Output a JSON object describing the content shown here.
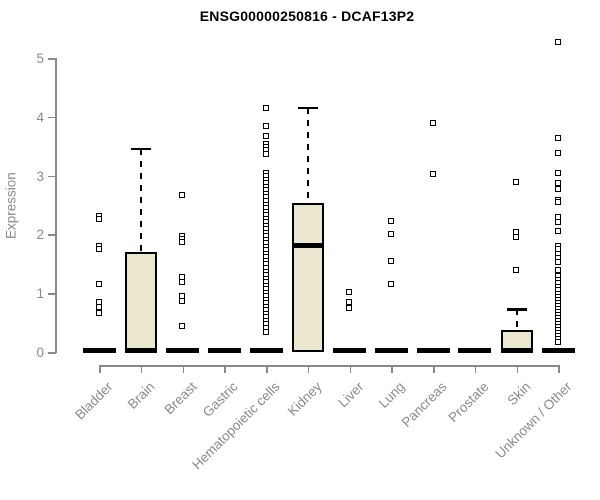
{
  "chart_data": {
    "type": "boxplot",
    "title": "ENSG00000250816 - DCAF13P2",
    "ylabel": "Expression",
    "ylim": [
      0,
      5.3
    ],
    "yticks": [
      "0",
      "1",
      "2",
      "3",
      "4",
      "5"
    ],
    "ytick_values": [
      0,
      1,
      2,
      3,
      4,
      5
    ],
    "grid": false,
    "legend": "none",
    "colors": {
      "box_fill": "#ebe7cf",
      "box_stroke": "#000000",
      "axis": "#888888",
      "tick_label": "#8a8a8a",
      "title": "#000000"
    },
    "categories": [
      "Bladder",
      "Brain",
      "Breast",
      "Gastric",
      "Hematopoietic cells",
      "Kidney",
      "Liver",
      "Lung",
      "Pancreas",
      "Prostate",
      "Skin",
      "Unknown / Other"
    ],
    "boxes": [
      {
        "category": "Bladder",
        "q1": 0,
        "median": 0.02,
        "q3": 0,
        "whisker_low": 0,
        "whisker_high": 0,
        "outliers": [
          2.31,
          2.26,
          1.8,
          1.74,
          1.14,
          0.85,
          0.75,
          0.66
        ]
      },
      {
        "category": "Brain",
        "q1": 0,
        "median": 0.02,
        "q3": 1.7,
        "whisker_low": 0,
        "whisker_high": 3.46,
        "outliers": []
      },
      {
        "category": "Breast",
        "q1": 0,
        "median": 0.02,
        "q3": 0,
        "whisker_low": 0,
        "whisker_high": 0,
        "outliers": [
          2.67,
          1.97,
          1.92,
          1.86,
          1.26,
          1.19,
          0.94,
          0.86,
          0.44
        ]
      },
      {
        "category": "Gastric",
        "q1": 0,
        "median": 0.02,
        "q3": 0,
        "whisker_low": 0,
        "whisker_high": 0,
        "outliers": []
      },
      {
        "category": "Hematopoietic cells",
        "q1": 0,
        "median": 0.02,
        "q3": 0,
        "whisker_low": 0,
        "whisker_high": 0,
        "outliers": [
          4.14,
          3.83,
          3.66,
          3.53,
          3.48,
          3.42,
          3.36,
          3.04,
          2.98,
          2.92,
          2.86,
          2.8,
          2.74,
          2.68,
          2.62,
          2.56,
          2.5,
          2.44,
          2.38,
          2.32,
          2.26,
          2.2,
          2.14,
          2.08,
          2.02,
          1.96,
          1.9,
          1.84,
          1.78,
          1.72,
          1.66,
          1.6,
          1.54,
          1.48,
          1.42,
          1.36,
          1.3,
          1.24,
          1.18,
          1.12,
          1.06,
          1.0,
          0.94,
          0.88,
          0.82,
          0.76,
          0.7,
          0.64,
          0.58,
          0.52,
          0.46,
          0.4,
          0.34
        ]
      },
      {
        "category": "Kidney",
        "q1": 0,
        "median": 1.81,
        "q3": 2.53,
        "whisker_low": 0,
        "whisker_high": 4.15,
        "outliers": []
      },
      {
        "category": "Liver",
        "q1": 0,
        "median": 0.02,
        "q3": 0,
        "whisker_low": 0,
        "whisker_high": 0,
        "outliers": [
          1.02,
          0.85,
          0.74
        ]
      },
      {
        "category": "Lung",
        "q1": 0,
        "median": 0.02,
        "q3": 0,
        "whisker_low": 0,
        "whisker_high": 0,
        "outliers": [
          2.22,
          1.99,
          1.54,
          1.14
        ]
      },
      {
        "category": "Pancreas",
        "q1": 0,
        "median": 0.02,
        "q3": 0,
        "whisker_low": 0,
        "whisker_high": 0,
        "outliers": [
          3.88,
          3.02
        ]
      },
      {
        "category": "Prostate",
        "q1": 0,
        "median": 0.02,
        "q3": 0,
        "whisker_low": 0,
        "whisker_high": 0,
        "outliers": []
      },
      {
        "category": "Skin",
        "q1": 0,
        "median": 0.02,
        "q3": 0.37,
        "whisker_low": 0,
        "whisker_high": 0.73,
        "outliers": [
          2.89,
          2.03,
          1.94,
          1.39
        ]
      },
      {
        "category": "Unknown / Other",
        "q1": 0,
        "median": 0.02,
        "q3": 0,
        "whisker_low": 0,
        "whisker_high": 0,
        "outliers": [
          5.26,
          3.63,
          3.38,
          3.03,
          2.86,
          2.77,
          2.58,
          2.54,
          2.29,
          2.21,
          2.05,
          1.8,
          1.74,
          1.66,
          1.59,
          1.52,
          1.38,
          1.28,
          1.22,
          1.16,
          1.1,
          1.04,
          0.98,
          0.93,
          0.88,
          0.82,
          0.77,
          0.72,
          0.67,
          0.62,
          0.57,
          0.52,
          0.47,
          0.42,
          0.37,
          0.32,
          0.27,
          0.22,
          0.17
        ]
      }
    ]
  }
}
